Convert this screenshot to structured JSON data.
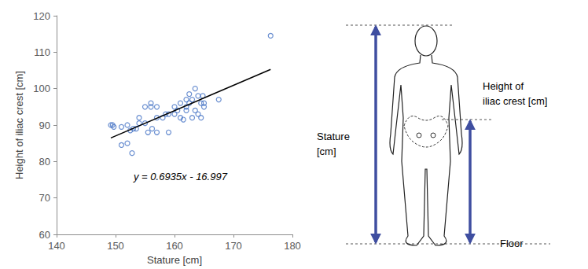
{
  "chart_data": {
    "type": "scatter",
    "x_label": "Stature [cm]",
    "y_label": "Height of iliac crest [cm]",
    "color": "#4472c4",
    "marker": "open circle",
    "grid": false,
    "x": [
      149.2,
      149.7,
      149.5,
      151,
      151,
      152,
      152,
      152.5,
      152.8,
      153,
      153.5,
      154,
      154,
      155,
      155,
      155.5,
      156,
      156,
      156.2,
      157,
      157,
      157,
      158,
      158.5,
      159,
      159,
      160,
      160,
      160.5,
      161,
      161,
      161.5,
      162,
      162,
      162,
      162.5,
      162.5,
      163,
      163,
      163.5,
      163.5,
      164,
      164,
      164.5,
      164.5,
      164.8,
      165,
      165,
      167.5,
      176.3
    ],
    "values": [
      90,
      89.5,
      90,
      89.5,
      84.5,
      85,
      90,
      88.5,
      82.3,
      89,
      89,
      92,
      90.5,
      95,
      90.5,
      88,
      96,
      95,
      89,
      95,
      88,
      92,
      92,
      93,
      88,
      93,
      95,
      93,
      94,
      92,
      96,
      91.5,
      97,
      95,
      94,
      98.5,
      96,
      92,
      97,
      100,
      94,
      98,
      93,
      96,
      92,
      98,
      95,
      96,
      97,
      114.5
    ],
    "trendline": {
      "x": [
        149.2,
        176.3
      ],
      "values": [
        86.47,
        105.27
      ],
      "color": "#000000",
      "label": "y = 0.6935x - 16.997"
    },
    "xlim": [
      140,
      180
    ],
    "xticks": [
      140,
      150,
      160,
      170,
      180
    ],
    "ylim": [
      60,
      120
    ],
    "yticks": [
      60,
      70,
      80,
      90,
      100,
      110,
      120
    ]
  },
  "diagram": {
    "stature_label": [
      "Stature",
      "[cm]"
    ],
    "iliac_label": [
      "Height of",
      "iliac crest [cm]"
    ],
    "floor_label": "Floor"
  }
}
